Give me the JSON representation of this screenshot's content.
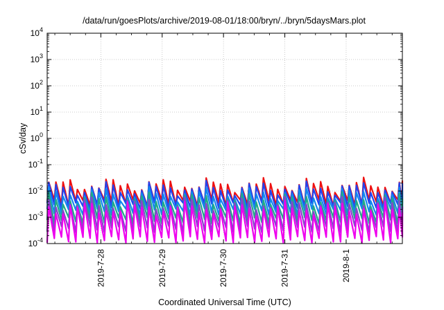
{
  "chart_data": {
    "type": "line",
    "title": "/data/run/goesPlots/archive/2019-08-01/18:00/bryn/../bryn/5daysMars.plot",
    "xlabel": "Coordinated Universal Time (UTC)",
    "ylabel": "cSv/day",
    "yscale": "log",
    "ylim": [
      0.0001,
      10000
    ],
    "y_ticks": [
      {
        "base": "10",
        "exp": "4",
        "value": 10000
      },
      {
        "base": "10",
        "exp": "3",
        "value": 1000
      },
      {
        "base": "10",
        "exp": "2",
        "value": 100
      },
      {
        "base": "10",
        "exp": "1",
        "value": 10
      },
      {
        "base": "10",
        "exp": "0",
        "value": 1
      },
      {
        "base": "10",
        "exp": "-1",
        "value": 0.1
      },
      {
        "base": "10",
        "exp": "-2",
        "value": 0.01
      },
      {
        "base": "10",
        "exp": "-3",
        "value": 0.001
      },
      {
        "base": "10",
        "exp": "-4",
        "value": 0.0001
      }
    ],
    "xlim": [
      "2019-07-27 03:00",
      "2019-08-01 22:00"
    ],
    "x_ticks": [
      {
        "label": "2019-7-28",
        "value": "2019-07-28 00:00"
      },
      {
        "label": "2019-7-29",
        "value": "2019-07-29 00:00"
      },
      {
        "label": "2019-7-30",
        "value": "2019-07-30 00:00"
      },
      {
        "label": "2019-7-31",
        "value": "2019-07-31 00:00"
      },
      {
        "label": "2019-8-1",
        "value": "2019-08-01 00:00"
      }
    ],
    "grid": true,
    "period_hours": 2.8,
    "series": [
      {
        "color": "#ee1111",
        "peak": 0.017,
        "trough": 0.0035
      },
      {
        "color": "#2244ee",
        "peak": 0.0125,
        "trough": 0.0027
      },
      {
        "color": "#1188ee",
        "peak": 0.0075,
        "trough": 0.0016
      },
      {
        "color": "#22aa88",
        "peak": 0.0048,
        "trough": 0.00075
      },
      {
        "color": "#8844cc",
        "peak": 0.0032,
        "trough": 0.00035
      },
      {
        "color": "#ee00ee",
        "peak": 0.0022,
        "trough": 0.00014
      }
    ]
  }
}
